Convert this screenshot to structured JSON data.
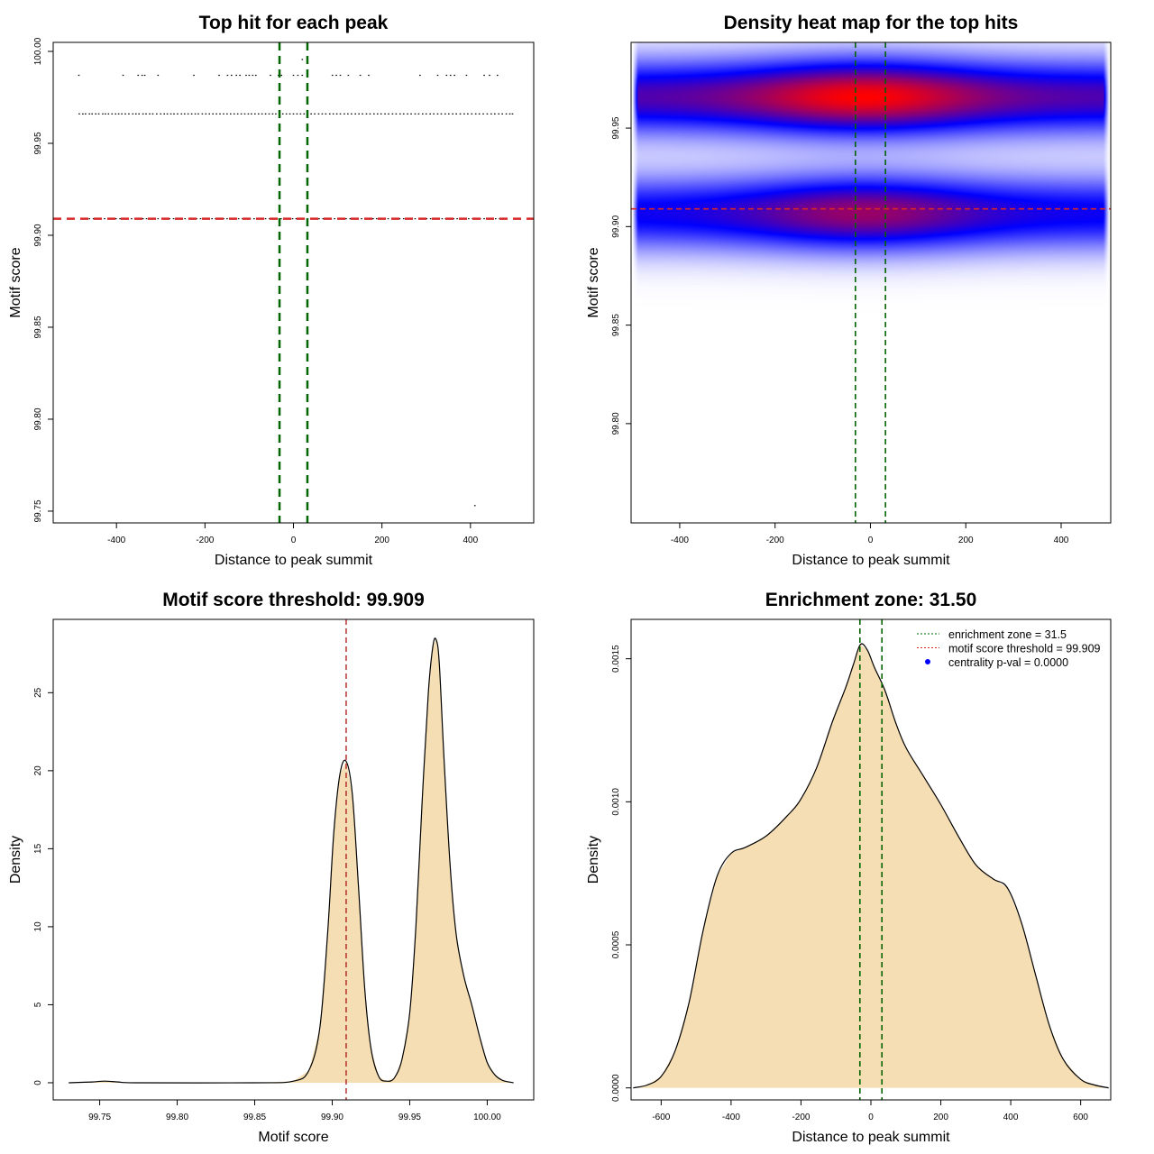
{
  "chart_data": [
    {
      "type": "scatter",
      "title": "Top hit for each peak",
      "xlabel": "Distance to peak summit",
      "ylabel": "Motif score",
      "xlim": [
        -543,
        543
      ],
      "ylim": [
        99.7436,
        100.0049
      ],
      "xticks": [
        -400,
        -200,
        0,
        200,
        400
      ],
      "xtick_labels": [
        "-400",
        "-200",
        "0",
        "200",
        "400"
      ],
      "yticks": [
        99.75,
        99.8,
        99.85,
        99.9,
        99.95,
        100.0
      ],
      "ytick_labels": [
        "99.75",
        "99.80",
        "99.85",
        "99.90",
        "99.95",
        "100.00"
      ],
      "vlines": {
        "values": [
          -31.5,
          31.5
        ],
        "color": "#006400",
        "style": "dashed"
      },
      "hline": {
        "value": 99.909,
        "color": "#d62728",
        "style": "dashed"
      },
      "rows": [
        {
          "y": 99.987,
          "x": [
            -485,
            -385,
            -351,
            -342,
            -336,
            -306,
            -225,
            -168,
            -149,
            -140,
            -129,
            -121,
            -107,
            -100,
            -92,
            -85,
            -52,
            -34,
            -27,
            0,
            10,
            20,
            88,
            97,
            106,
            124,
            151,
            170,
            286,
            326,
            346,
            355,
            364,
            391,
            431,
            443,
            461
          ]
        },
        {
          "y": 99.966,
          "x": [
            -484,
            -476,
            -470,
            -461,
            -455,
            -447,
            -440,
            -431,
            -425,
            -418,
            -410,
            -402,
            -395,
            -388,
            -380,
            -372,
            -363,
            -356,
            -349,
            -340,
            -333,
            -325,
            -318,
            -309,
            -300,
            -292,
            -285,
            -277,
            -270,
            -262,
            -253,
            -246,
            -238,
            -230,
            -222,
            -215,
            -206,
            -198,
            -190,
            -182,
            -174,
            -166,
            -158,
            -150,
            -142,
            -134,
            -126,
            -118,
            -110,
            -102,
            -95,
            -87,
            -79,
            -71,
            -63,
            -55,
            -47,
            -40,
            -32,
            -24,
            -16,
            -8,
            0,
            8,
            16,
            24,
            32,
            40,
            48,
            57,
            65,
            73,
            82,
            90,
            98,
            106,
            115,
            123,
            131,
            140,
            148,
            156,
            165,
            173,
            182,
            190,
            198,
            207,
            215,
            224,
            232,
            241,
            249,
            258,
            266,
            275,
            283,
            292,
            300,
            309,
            317,
            326,
            334,
            343,
            351,
            360,
            368,
            377,
            386,
            394,
            403,
            412,
            420,
            429,
            438,
            447,
            455,
            464,
            472,
            481,
            489,
            495
          ]
        },
        {
          "y": 99.909,
          "x": [
            -478,
            -470,
            -461,
            -452,
            -444,
            -436,
            -427,
            -418,
            -410,
            -401,
            -392,
            -384,
            -375,
            -366,
            -358,
            -349,
            -340,
            -332,
            -323,
            -314,
            -306,
            -297,
            -288,
            -280,
            -271,
            -262,
            -254,
            -245,
            -236,
            -228,
            -219,
            -210,
            -202,
            -193,
            -184,
            -176,
            -167,
            -158,
            -150,
            -141,
            -132,
            -124,
            -115,
            -106,
            -98,
            -89,
            -80,
            -72,
            -63,
            -54,
            -46,
            -37,
            -28,
            -20,
            -11,
            -2,
            6,
            15,
            24,
            32,
            41,
            50,
            58,
            67,
            76,
            84,
            93,
            102,
            110,
            119,
            128,
            136,
            145,
            154,
            162,
            171,
            180,
            188,
            197,
            206,
            214,
            223,
            232,
            240,
            249,
            258,
            266,
            275,
            284,
            292,
            301,
            310,
            318,
            327,
            336,
            344,
            353,
            362,
            370,
            379,
            388,
            396,
            405,
            414,
            422,
            431,
            440,
            448,
            457,
            466,
            475
          ]
        },
        {
          "y": 99.9956,
          "x": [
            20
          ]
        },
        {
          "y": 99.753,
          "x": [
            410
          ]
        }
      ]
    },
    {
      "type": "heatmap",
      "title": "Density heat map for the top hits",
      "xlabel": "Distance to peak summit",
      "ylabel": "Motif score",
      "xlim": [
        -502,
        504
      ],
      "ylim": [
        99.7496,
        99.9935
      ],
      "xticks": [
        -400,
        -200,
        0,
        200,
        400
      ],
      "xtick_labels": [
        "-400",
        "-200",
        "0",
        "200",
        "400"
      ],
      "yticks": [
        99.8,
        99.85,
        99.9,
        99.95
      ],
      "ytick_labels": [
        "99.80",
        "99.85",
        "99.90",
        "99.95"
      ],
      "colors": [
        "#ffffff",
        "#0000ff",
        "#ff0000"
      ],
      "density_bands": [
        {
          "y_center": 99.966,
          "peak_x": -15,
          "relative_peak": 1.0
        },
        {
          "y_center": 99.907,
          "peak_x": -15,
          "relative_peak": 0.8
        }
      ],
      "data_range_x": [
        -500,
        500
      ],
      "vlines": {
        "values": [
          -31.5,
          31.5
        ],
        "color": "#006400",
        "style": "dashed"
      },
      "hline": {
        "value": 99.909,
        "color": "#d62728",
        "style": "dashed"
      }
    },
    {
      "type": "area",
      "title": "Motif score threshold: 99.909",
      "xlabel": "Motif score",
      "ylabel": "Density",
      "xlim": [
        99.72,
        100.03
      ],
      "ylim": [
        -1.1,
        29.7
      ],
      "xticks": [
        99.75,
        99.8,
        99.85,
        99.9,
        99.95,
        100.0
      ],
      "xtick_labels": [
        "99.75",
        "99.80",
        "99.85",
        "99.90",
        "99.95",
        "100.00"
      ],
      "yticks": [
        0,
        5,
        10,
        15,
        20,
        25
      ],
      "ytick_labels": [
        "0",
        "5",
        "10",
        "15",
        "20",
        "25"
      ],
      "fill": "#f5deb3",
      "x": [
        99.73,
        99.745,
        99.753,
        99.762,
        99.775,
        99.85,
        99.875,
        99.885,
        99.892,
        99.897,
        99.901,
        99.905,
        99.909,
        99.913,
        99.917,
        99.921,
        99.925,
        99.93,
        99.935,
        99.94,
        99.945,
        99.95,
        99.954,
        99.958,
        99.962,
        99.965,
        99.967,
        99.969,
        99.972,
        99.976,
        99.98,
        99.985,
        99.99,
        99.995,
        100.0,
        100.005,
        100.01,
        100.017
      ],
      "y": [
        0,
        0.05,
        0.1,
        0.05,
        0,
        0,
        0.1,
        0.8,
        3.5,
        9.5,
        16,
        19.8,
        20.6,
        18.5,
        12.5,
        6,
        2.2,
        0.4,
        0.1,
        0.3,
        1.5,
        4.5,
        10,
        18,
        25,
        28,
        28.4,
        27,
        21,
        14,
        9.5,
        6.8,
        5,
        3,
        1.3,
        0.5,
        0.15,
        0
      ],
      "vline": {
        "value": 99.909,
        "color": "#b22222",
        "style": "dashed"
      }
    },
    {
      "type": "area",
      "title": "Enrichment zone: 31.50",
      "xlabel": "Distance to peak summit",
      "ylabel": "Density",
      "xlim": [
        -686,
        686
      ],
      "ylim": [
        -4.2e-05,
        0.0016376
      ],
      "xticks": [
        -600,
        -400,
        -200,
        0,
        200,
        400,
        600
      ],
      "xtick_labels": [
        "-600",
        "-400",
        "-200",
        "0",
        "200",
        "400",
        "600"
      ],
      "yticks": [
        0,
        0.0005,
        0.001,
        0.0015
      ],
      "ytick_labels": [
        "0.0000",
        "0.0005",
        "0.0010",
        "0.0015"
      ],
      "fill": "#f5deb3",
      "x": [
        -680,
        -640,
        -600,
        -560,
        -520,
        -480,
        -440,
        -400,
        -360,
        -300,
        -240,
        -200,
        -155,
        -110,
        -72,
        -50,
        -30,
        -10,
        10,
        40,
        70,
        100,
        150,
        200,
        250,
        300,
        350,
        390,
        430,
        470,
        510,
        550,
        600,
        640,
        680
      ],
      "y": [
        0,
        1e-05,
        4e-05,
        0.00013,
        0.0003,
        0.00055,
        0.00074,
        0.00082,
        0.00084,
        0.00088,
        0.00095,
        0.00101,
        0.00112,
        0.00128,
        0.0014,
        0.00148,
        0.00155,
        0.00153,
        0.00147,
        0.00139,
        0.00128,
        0.00119,
        0.00109,
        0.00099,
        0.00088,
        0.00078,
        0.00073,
        0.0007,
        0.00058,
        0.0004,
        0.00022,
        0.0001,
        3e-05,
        1e-05,
        0
      ],
      "vlines": {
        "values": [
          -31.5,
          31.5
        ],
        "color": "#006400",
        "style": "dashed"
      },
      "legend": {
        "position": "top-right",
        "entries": [
          {
            "label": "enrichment zone = 31.5",
            "color": "#006400",
            "symbol": "dotted-line"
          },
          {
            "label": "motif score threshold = 99.909",
            "color": "#d62728",
            "symbol": "dotted-line"
          },
          {
            "label": "centrality p-val = 0.0000",
            "color": "#0000ff",
            "symbol": "dot"
          }
        ]
      }
    }
  ]
}
